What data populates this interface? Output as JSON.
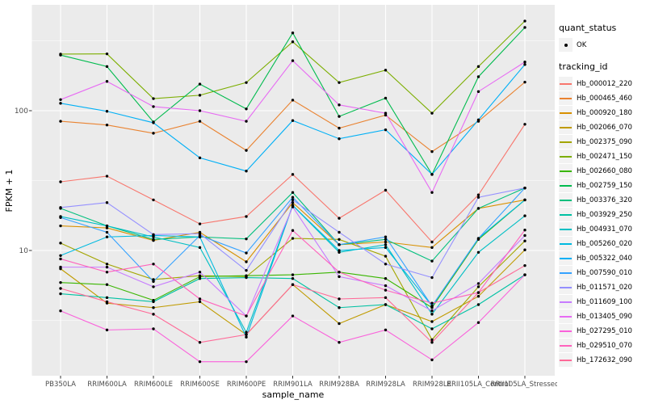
{
  "chart_data": {
    "type": "line",
    "xlabel": "sample_name",
    "ylabel": "FPKM + 1",
    "y_scale": "log10",
    "y_ticks": [
      10,
      100
    ],
    "y_tick_labels": [
      "10",
      "100"
    ],
    "y_minor_ticks": [
      3.162,
      31.62,
      316.2
    ],
    "ylim": [
      1.25,
      600
    ],
    "panel_bg": "#EBEBEB",
    "grid_color": "#FFFFFF",
    "point_color": "#000000",
    "axis_text_color": "#4D4D4D",
    "categories": [
      "PB350LA",
      "RRIM600LA",
      "RRIM600LE",
      "RRIM600SE",
      "RRIM600PE",
      "RRIM901LA",
      "RRIM928BA",
      "RRIM928LA",
      "RRIM928LE",
      "RRII105LA_Control",
      "RRII105LA_Stressed"
    ],
    "series": [
      {
        "name": "Hb_000012_220",
        "color": "#F8766D",
        "values": [
          31,
          34,
          23,
          15.5,
          17.5,
          35,
          17,
          27,
          11.5,
          25,
          80
        ]
      },
      {
        "name": "Hb_000465_460",
        "color": "#EA8331",
        "values": [
          84,
          79,
          69,
          84,
          52,
          119,
          75,
          93,
          51,
          84,
          160
        ]
      },
      {
        "name": "Hb_000920_180",
        "color": "#D89000",
        "values": [
          15,
          14.5,
          11.8,
          13.5,
          8.3,
          22,
          11,
          11.5,
          10.5,
          20,
          23
        ]
      },
      {
        "name": "Hb_002066_070",
        "color": "#C09B00",
        "values": [
          7.4,
          4.2,
          3.9,
          4.3,
          2.5,
          5.7,
          3.0,
          4.1,
          3.1,
          4.7,
          10.1
        ]
      },
      {
        "name": "Hb_002375_090",
        "color": "#A3A500",
        "values": [
          11.3,
          8.0,
          6.2,
          6.6,
          6.5,
          12.2,
          12.0,
          9.1,
          2.3,
          5.5,
          11.7
        ]
      },
      {
        "name": "Hb_002471_150",
        "color": "#7CAE00",
        "values": [
          254,
          255,
          122,
          129,
          159,
          311,
          159,
          195,
          96,
          207,
          438
        ]
      },
      {
        "name": "Hb_002660_080",
        "color": "#39B600",
        "values": [
          5.9,
          5.7,
          4.4,
          6.5,
          6.6,
          6.7,
          7.0,
          6.3,
          3.9,
          12,
          23
        ]
      },
      {
        "name": "Hb_002759_150",
        "color": "#00BB4E",
        "values": [
          250,
          207,
          83,
          155,
          103,
          360,
          91,
          123,
          35,
          175,
          394
        ]
      },
      {
        "name": "Hb_003376_320",
        "color": "#00BF7D",
        "values": [
          20,
          15,
          12,
          12.5,
          12.1,
          26,
          11,
          12,
          8.4,
          20,
          28
        ]
      },
      {
        "name": "Hb_003929_250",
        "color": "#00C1A3",
        "values": [
          4.9,
          4.6,
          4.3,
          6.3,
          6.4,
          6.3,
          3.9,
          4.1,
          2.75,
          4.1,
          6.7
        ]
      },
      {
        "name": "Hb_004931_070",
        "color": "#00BFC4",
        "values": [
          17.5,
          15,
          12.5,
          10.5,
          2.6,
          21,
          9.7,
          11,
          3.5,
          9.7,
          17.7
        ]
      },
      {
        "name": "Hb_005260_020",
        "color": "#00BAE0",
        "values": [
          9.2,
          12.5,
          12.8,
          12.5,
          2.4,
          21,
          10,
          10.5,
          4.0,
          12.2,
          23
        ]
      },
      {
        "name": "Hb_005322_040",
        "color": "#00B0F6",
        "values": [
          113,
          99,
          82,
          46,
          37,
          85,
          63,
          73,
          35,
          86,
          214
        ]
      },
      {
        "name": "Hb_007590_010",
        "color": "#35A2FF",
        "values": [
          17.2,
          13.5,
          6.0,
          12.8,
          9.6,
          24,
          11,
          12.5,
          4.0,
          12.2,
          28
        ]
      },
      {
        "name": "Hb_011571_020",
        "color": "#9590FF",
        "values": [
          20.3,
          22,
          13,
          13.2,
          7.2,
          23,
          13.5,
          8,
          6.4,
          24,
          28
        ]
      },
      {
        "name": "Hb_011609_100",
        "color": "#C77CFF",
        "values": [
          7.6,
          7.6,
          5.5,
          7.0,
          3.4,
          20.5,
          6.5,
          5.6,
          3.7,
          5.8,
          12.8
        ]
      },
      {
        "name": "Hb_013405_090",
        "color": "#E76BF3",
        "values": [
          120,
          162,
          107,
          100,
          84,
          228,
          110,
          96,
          26,
          137,
          223
        ]
      },
      {
        "name": "Hb_027295_010",
        "color": "#FA62DB",
        "values": [
          3.7,
          2.7,
          2.75,
          1.6,
          1.6,
          3.4,
          2.2,
          2.7,
          1.65,
          3.05,
          6.7
        ]
      },
      {
        "name": "Hb_029510_070",
        "color": "#FF62BC",
        "values": [
          8.7,
          7.0,
          8.0,
          4.5,
          3.4,
          13.9,
          7.0,
          5.2,
          4.2,
          5.0,
          14
        ]
      },
      {
        "name": "Hb_172632_090",
        "color": "#FF6A98",
        "values": [
          5.35,
          4.3,
          3.5,
          2.2,
          2.5,
          5.7,
          4.5,
          4.6,
          2.2,
          5.0,
          7.8
        ]
      }
    ],
    "legend": {
      "quant_status_title": "quant_status",
      "quant_status_items": [
        "OK"
      ],
      "tracking_title": "tracking_id",
      "position": "right"
    }
  }
}
